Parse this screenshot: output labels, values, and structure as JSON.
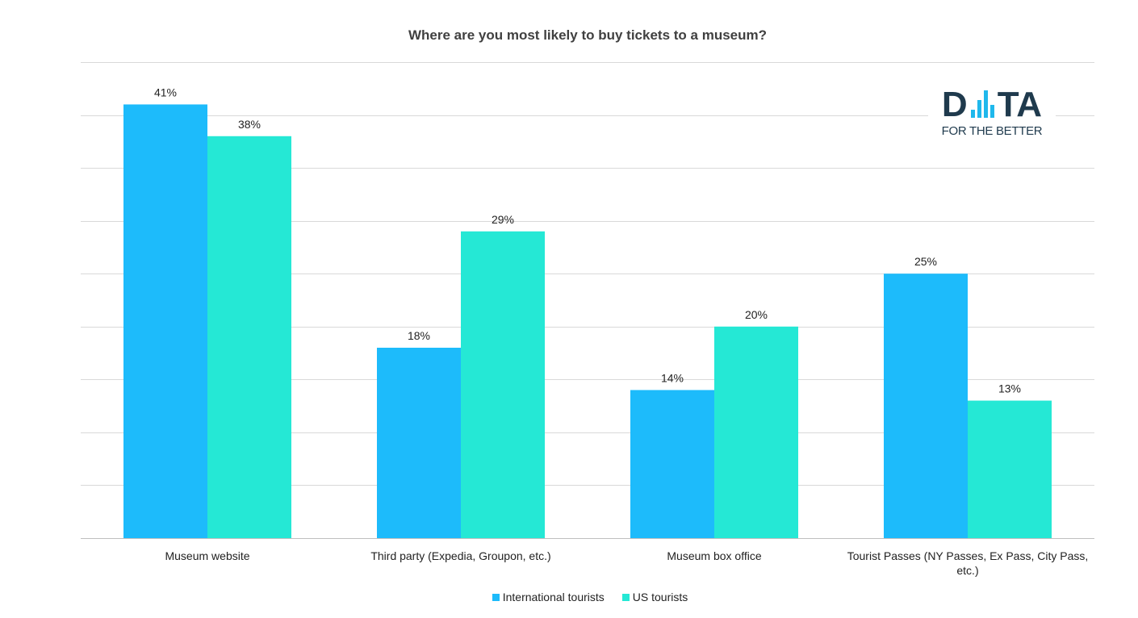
{
  "chart_data": {
    "type": "bar",
    "title": "Where are you most likely to buy tickets to a museum?",
    "categories": [
      [
        "Museum website"
      ],
      [
        "Third party (Expedia, Groupon, etc.)"
      ],
      [
        "Museum box office"
      ],
      [
        "Tourist Passes (NY Passes, Ex Pass, City Pass,",
        "etc.)"
      ]
    ],
    "series": [
      {
        "name": "International tourists",
        "color": "#1dbbfb",
        "values": [
          41,
          18,
          14,
          25
        ],
        "labels": [
          "41%",
          "18%",
          "14%",
          "25%"
        ]
      },
      {
        "name": "US tourists",
        "color": "#25e8d5",
        "values": [
          38,
          29,
          20,
          13
        ],
        "labels": [
          "38%",
          "29%",
          "20%",
          "13%"
        ]
      }
    ],
    "ylim": [
      0,
      45
    ],
    "grid": true,
    "legend": "bottom"
  },
  "logo": {
    "brand_left": "D",
    "brand_right": "TA",
    "tagline": "FOR THE BETTER"
  }
}
